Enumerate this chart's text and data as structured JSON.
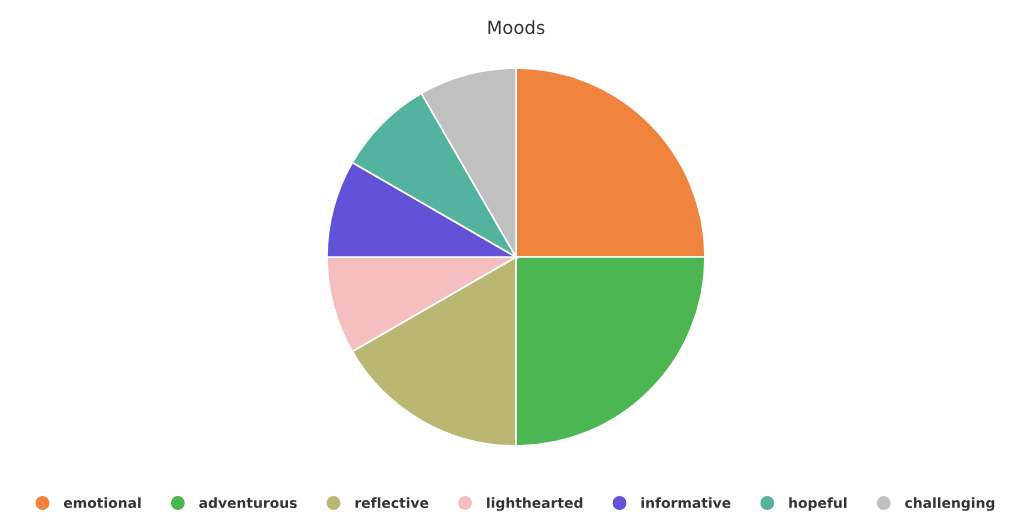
{
  "chart_data": {
    "type": "pie",
    "title": "Moods",
    "categories": [
      "emotional",
      "adventurous",
      "reflective",
      "lighthearted",
      "informative",
      "hopeful",
      "challenging"
    ],
    "values": [
      25,
      25,
      16.67,
      8.33,
      8.33,
      8.33,
      8.34
    ],
    "colors": [
      "#f0843f",
      "#4cb652",
      "#bab772",
      "#f5bfc0",
      "#6352d8",
      "#53b39e",
      "#c0c0c0"
    ],
    "legend": "bottom"
  }
}
